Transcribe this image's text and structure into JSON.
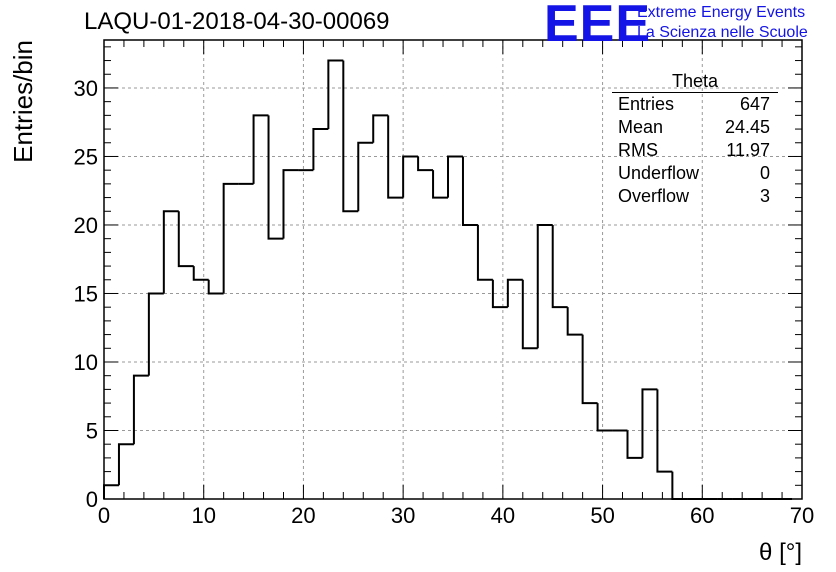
{
  "header": {
    "title": "LAQU-01-2018-04-30-00069",
    "logo": "EEE",
    "logo_line1": "Extreme Energy Events",
    "logo_line2": "La Scienza nelle Scuole"
  },
  "stats_box": {
    "title": "Theta",
    "rows": [
      {
        "label": "Entries",
        "value": "647"
      },
      {
        "label": "Mean",
        "value": "24.45"
      },
      {
        "label": "RMS",
        "value": "11.97"
      },
      {
        "label": "Underflow",
        "value": "0"
      },
      {
        "label": "Overflow",
        "value": "3"
      }
    ]
  },
  "colors": {
    "line": "#000000",
    "grid": "#9a9a9a",
    "logo": "#1414e6",
    "background": "#ffffff"
  },
  "chart_data": {
    "type": "histogram",
    "title": "LAQU-01-2018-04-30-00069",
    "xlabel": "θ [°]",
    "ylabel": "Entries/bin",
    "xlim": [
      0,
      70
    ],
    "ylim": [
      0,
      33.5
    ],
    "grid": true,
    "x_ticks": [
      0,
      10,
      20,
      30,
      40,
      50,
      60,
      70
    ],
    "y_ticks": [
      0,
      5,
      10,
      15,
      20,
      25,
      30
    ],
    "bin_width": 1.5,
    "bin_start": 0,
    "values": [
      1,
      4,
      9,
      15,
      21,
      17,
      16,
      15,
      23,
      23,
      28,
      19,
      24,
      24,
      27,
      32,
      21,
      26,
      28,
      22,
      25,
      24,
      22,
      25,
      20,
      16,
      14,
      16,
      11,
      20,
      14,
      12,
      7,
      5,
      5,
      3,
      8,
      2,
      0,
      0,
      0,
      0,
      0,
      0,
      0,
      0
    ]
  }
}
